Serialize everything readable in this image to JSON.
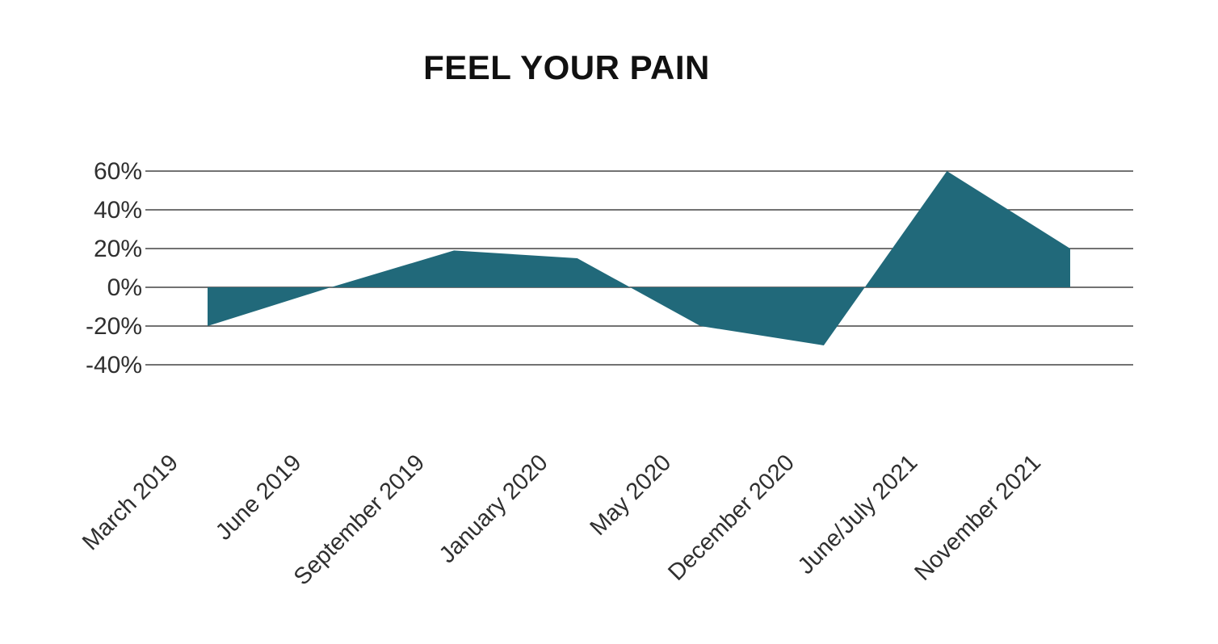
{
  "chart": {
    "title": "FEEL YOUR PAIN"
  },
  "chart_data": {
    "type": "area",
    "title": "FEEL YOUR PAIN",
    "categories": [
      "March 2019",
      "June 2019",
      "September 2019",
      "January 2020",
      "May 2020",
      "December 2020",
      "June/July 2021",
      "November 2021"
    ],
    "values": [
      -20,
      0,
      19,
      15,
      -20,
      -30,
      60,
      20
    ],
    "unit": "%",
    "xlabel": "",
    "ylabel": "",
    "ylim": [
      -40,
      60
    ],
    "yticks": [
      60,
      40,
      20,
      0,
      -20,
      -40
    ],
    "ytick_labels": [
      "60%",
      "40%",
      "20%",
      "0%",
      "-20%",
      "-40%"
    ],
    "baseline": 0,
    "grid": "horizontal",
    "legend": "none",
    "xtick_rotation_deg": 45,
    "colors": {
      "area_fill": "#21697a",
      "gridline": "#444444",
      "axis_text": "#2f2f2f",
      "title_text": "#111111",
      "background": "#ffffff"
    }
  }
}
